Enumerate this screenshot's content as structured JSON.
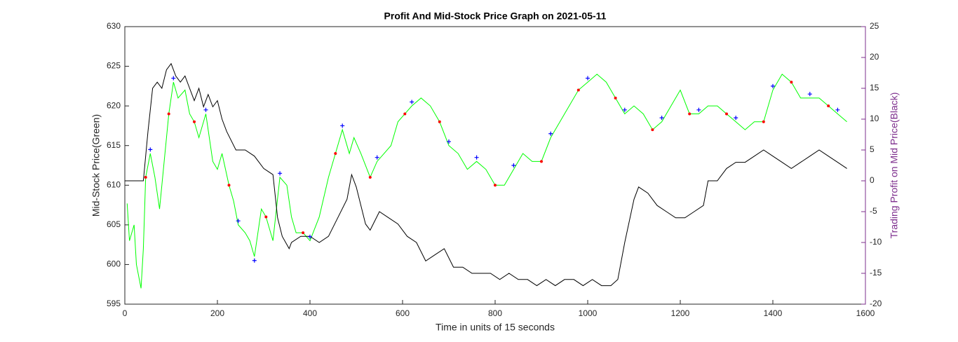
{
  "chart_data": {
    "type": "line",
    "title": "Profit And Mid-Stock Price Graph on 2021-05-11",
    "xlabel": "Time in units of 15 seconds",
    "ylabel": "Mid-Stock Price(Green)",
    "y2label": "Trading Profit on Mid Price(Black)",
    "xlim": [
      0,
      1600
    ],
    "xticks": [
      0,
      200,
      400,
      600,
      800,
      1000,
      1200,
      1400,
      1600
    ],
    "ylim": [
      595,
      630
    ],
    "yticks": [
      595,
      600,
      605,
      610,
      615,
      620,
      625,
      630
    ],
    "y2lim": [
      -20,
      25
    ],
    "y2ticks": [
      -20,
      -15,
      -10,
      -5,
      0,
      5,
      10,
      15,
      20,
      25
    ],
    "y2color": "#7e2f8e",
    "series": [
      {
        "color": "#00ff00",
        "marker": "line",
        "x": [
          5,
          10,
          20,
          25,
          35,
          40,
          45,
          55,
          65,
          75,
          85,
          95,
          105,
          115,
          130,
          140,
          150,
          160,
          175,
          190,
          200,
          210,
          225,
          235,
          245,
          260,
          270,
          280,
          295,
          305,
          320,
          335,
          350,
          360,
          370,
          385,
          400,
          420,
          440,
          455,
          470,
          485,
          495,
          510,
          530,
          545,
          560,
          575,
          590,
          605,
          620,
          640,
          660,
          680,
          700,
          720,
          740,
          760,
          780,
          800,
          820,
          840,
          860,
          880,
          900,
          920,
          940,
          960,
          980,
          1000,
          1020,
          1040,
          1060,
          1080,
          1100,
          1120,
          1140,
          1160,
          1180,
          1200,
          1220,
          1240,
          1260,
          1280,
          1300,
          1320,
          1340,
          1360,
          1380,
          1400,
          1420,
          1440,
          1460,
          1480,
          1500,
          1520,
          1540,
          1560
        ],
        "values": [
          607.7,
          603,
          605,
          600,
          597,
          602,
          611,
          614,
          611,
          607,
          613,
          619,
          623,
          621,
          622,
          619,
          618,
          616,
          619,
          613,
          612,
          614,
          610,
          608,
          605,
          604,
          603,
          601,
          607,
          606,
          603,
          611,
          610,
          606,
          604,
          604,
          603,
          606,
          611,
          614,
          617,
          614,
          616,
          614,
          611,
          613,
          614,
          615,
          618,
          619,
          620,
          621,
          620,
          618,
          615,
          614,
          612,
          613,
          612,
          610,
          610,
          612,
          614,
          613,
          613,
          616,
          618,
          620,
          622,
          623,
          624,
          623,
          621,
          619,
          620,
          619,
          617,
          618,
          620,
          622,
          619,
          619,
          620,
          620,
          619,
          618,
          617,
          618,
          618,
          622,
          624,
          623,
          621,
          621,
          621,
          620,
          619,
          618
        ]
      },
      {
        "color": "#000000",
        "marker": "line",
        "axis": "y2",
        "x": [
          0,
          40,
          50,
          60,
          70,
          80,
          90,
          100,
          110,
          120,
          130,
          140,
          150,
          160,
          170,
          180,
          190,
          200,
          210,
          220,
          240,
          260,
          280,
          300,
          320,
          330,
          340,
          355,
          360,
          380,
          400,
          420,
          440,
          460,
          480,
          490,
          500,
          510,
          520,
          530,
          550,
          570,
          590,
          610,
          630,
          650,
          670,
          690,
          710,
          730,
          750,
          770,
          790,
          810,
          830,
          850,
          870,
          890,
          910,
          930,
          950,
          970,
          990,
          1010,
          1030,
          1050,
          1065,
          1080,
          1100,
          1110,
          1130,
          1150,
          1170,
          1190,
          1210,
          1230,
          1250,
          1260,
          1280,
          1300,
          1320,
          1340,
          1360,
          1380,
          1400,
          1420,
          1440,
          1460,
          1480,
          1500,
          1520,
          1540,
          1560
        ],
        "values": [
          0,
          0,
          8,
          15,
          16,
          15,
          18,
          19,
          17,
          16,
          17,
          15,
          13,
          15,
          12,
          14,
          12,
          13,
          10,
          8,
          5,
          5,
          4,
          2,
          1,
          -6,
          -9,
          -11,
          -10,
          -9,
          -9,
          -10,
          -9,
          -6,
          -3,
          1,
          -1,
          -4,
          -7,
          -8,
          -5,
          -6,
          -7,
          -9,
          -10,
          -13,
          -12,
          -11,
          -14,
          -14,
          -15,
          -15,
          -15,
          -16,
          -15,
          -16,
          -16,
          -17,
          -16,
          -17,
          -16,
          -16,
          -17,
          -16,
          -17,
          -17,
          -16,
          -10,
          -3,
          -1,
          -2,
          -4,
          -5,
          -6,
          -6,
          -5,
          -4,
          0,
          0,
          2,
          3,
          3,
          4,
          5,
          4,
          3,
          2,
          3,
          4,
          5,
          4,
          3,
          2
        ]
      },
      {
        "color": "#0000ff",
        "marker": "plus",
        "x": [
          55,
          105,
          175,
          245,
          280,
          335,
          400,
          470,
          545,
          620,
          700,
          760,
          840,
          920,
          1000,
          1080,
          1160,
          1240,
          1320,
          1400,
          1480,
          1540
        ],
        "values": [
          614.5,
          623.5,
          619.5,
          605.5,
          600.5,
          611.5,
          603.5,
          617.5,
          613.5,
          620.5,
          615.5,
          613.5,
          612.5,
          616.5,
          623.5,
          619.5,
          618.5,
          619.5,
          618.5,
          622.5,
          621.5,
          619.5
        ]
      },
      {
        "color": "#ff0000",
        "marker": "dot",
        "x": [
          45,
          95,
          150,
          225,
          305,
          385,
          455,
          530,
          605,
          680,
          800,
          900,
          980,
          1060,
          1140,
          1220,
          1300,
          1380,
          1440,
          1520
        ],
        "values": [
          611,
          619,
          618,
          610,
          606,
          604,
          614,
          611,
          619,
          618,
          610,
          613,
          622,
          621,
          617,
          619,
          619,
          618,
          623,
          620
        ]
      }
    ]
  }
}
